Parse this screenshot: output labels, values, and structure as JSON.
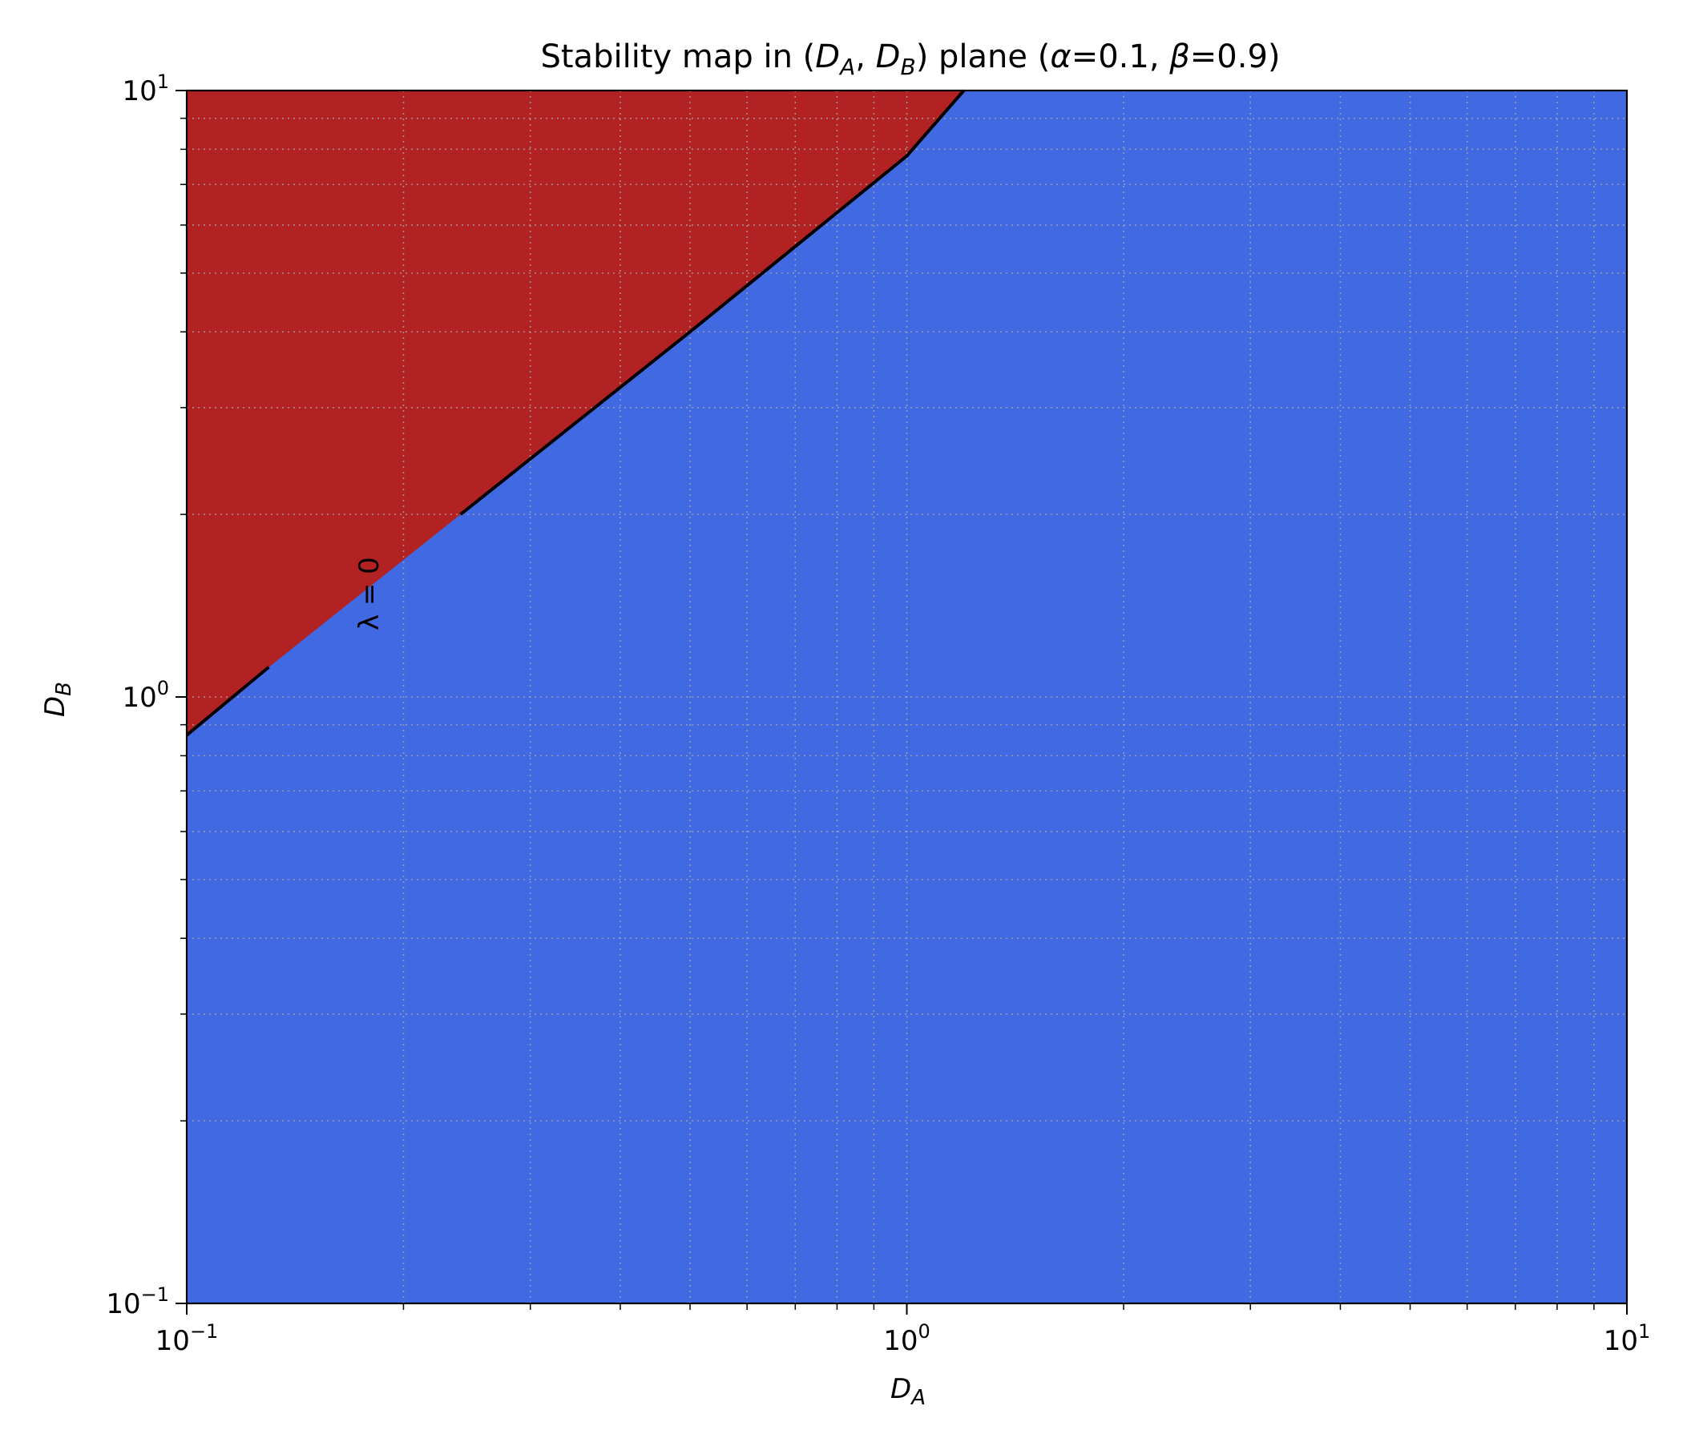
{
  "chart_data": {
    "type": "heatmap",
    "title": {
      "prefix": "Stability map in (",
      "x_symbol": "D",
      "x_sub": "A",
      "sep": ", ",
      "y_symbol": "D",
      "y_sub": "B",
      "suffix_plane": ") plane  (",
      "alpha_symbol": "α",
      "alpha_text": "=0.1, ",
      "beta_symbol": "β",
      "beta_text": "=0.9)"
    },
    "xlabel": {
      "symbol": "D",
      "sub": "A"
    },
    "ylabel": {
      "symbol": "D",
      "sub": "B"
    },
    "x_scale": "log",
    "y_scale": "log",
    "xlim": [
      0.1,
      10
    ],
    "ylim": [
      0.1,
      10
    ],
    "x_ticks": [
      {
        "value": 0.1,
        "base": "10",
        "exp": "−1"
      },
      {
        "value": 1,
        "base": "10",
        "exp": "0"
      },
      {
        "value": 10,
        "base": "10",
        "exp": "1"
      }
    ],
    "y_ticks": [
      {
        "value": 0.1,
        "base": "10",
        "exp": "−1"
      },
      {
        "value": 1,
        "base": "10",
        "exp": "0"
      },
      {
        "value": 10,
        "base": "10",
        "exp": "1"
      }
    ],
    "grid": true,
    "regions": {
      "upper_color": "#b22222",
      "lower_color": "#4169e1"
    },
    "boundary": {
      "label": "λ = 0",
      "label_at": {
        "x": 0.18,
        "y": 1.48
      },
      "color": "#000000",
      "points": [
        {
          "x": 0.1,
          "y": 0.865
        },
        {
          "x": 0.13,
          "y": 1.12
        },
        {
          "x": 0.24,
          "y": 2.0
        },
        {
          "x": 0.5,
          "y": 4.0
        },
        {
          "x": 1.0,
          "y": 7.8
        },
        {
          "x": 1.2,
          "y": 10.0
        }
      ],
      "label_gap": {
        "from": 0.13,
        "to": 0.24
      }
    }
  }
}
